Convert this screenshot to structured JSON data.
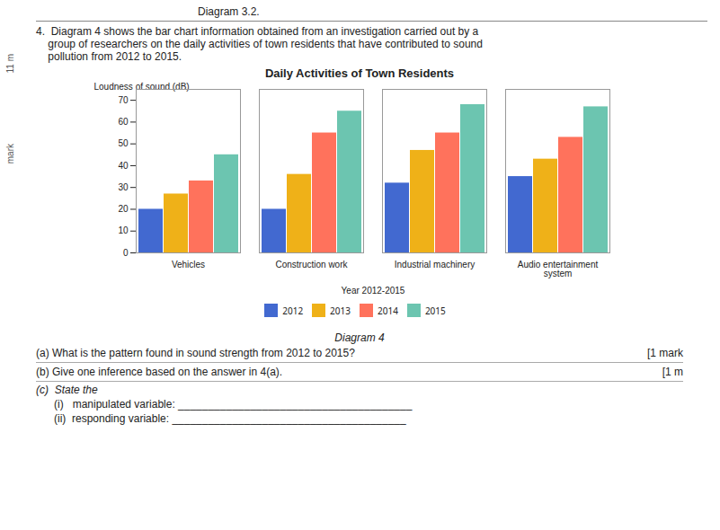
{
  "chart_data": {
    "type": "bar",
    "title": "Daily Activities of Town Residents",
    "xlabel": "Year 2012-2015",
    "ylabel": "Loudness of sound (dB)",
    "categories": [
      "Vehicles",
      "Construction work",
      "Industrial machinery",
      "Audio entertainment system"
    ],
    "series": [
      {
        "name": "2012",
        "values": [
          20,
          20,
          32,
          35
        ]
      },
      {
        "name": "2013",
        "values": [
          27,
          36,
          47,
          43
        ]
      },
      {
        "name": "2014",
        "values": [
          33,
          55,
          55,
          53
        ]
      },
      {
        "name": "2015",
        "values": [
          45,
          65,
          68,
          67
        ]
      }
    ],
    "ylim": [
      0,
      75
    ],
    "yticks": [
      0,
      10,
      20,
      30,
      40,
      50,
      60,
      70
    ],
    "grid": false,
    "legend": "bottom",
    "annotations": [
      "Diagram 3.2.",
      "4.  Diagram 4 shows the bar chart information obtained from an investigation carried out by a\n    group of researchers on the daily activities of town residents that have contributed to sound\n    pollution from 2012 to 2015.",
      "Diagram 4",
      "(a)  What is the pattern found in sound strength from 2012 to 2015?",
      "[1 mark",
      "(b)  Give one inference based on the answer in 4(a).",
      "[1 m",
      "(c)  State the",
      "(i)   manipulated variable: _______________________________________",
      "(ii)  responding variable: _______________________________________",
      "11 m",
      "mark"
    ]
  }
}
